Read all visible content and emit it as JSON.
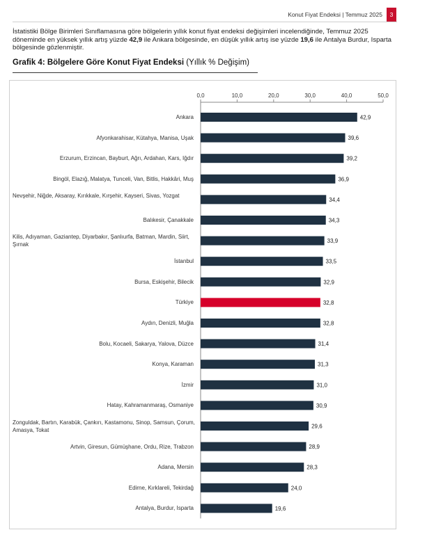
{
  "header": {
    "text": "Konut Fiyat Endeksi | Temmuz 2025",
    "page_number": "3"
  },
  "intro": {
    "part1": "İstatistiki Bölge Birimleri Sınıflamasına göre bölgelerin yıllık konut fiyat endeksi değişimleri incelendiğinde, Temmuz 2025 döneminde en yüksek yıllık artış yüzde ",
    "max_value": "42,9",
    "part2": " ile Ankara bölgesinde, en düşük yıllık artış ise yüzde ",
    "min_value": "19,6",
    "part3": " ile Antalya Burdur, Isparta bölgesinde gözlenmiştir."
  },
  "graph": {
    "title_bold": "Grafik 4: Bölgelere Göre Konut Fiyat Endeksi",
    "title_normal": " (Yıllık % Değişim)"
  },
  "chart_data": {
    "type": "bar",
    "orientation": "horizontal",
    "title": "Grafik 4: Bölgelere Göre Konut Fiyat Endeksi (Yıllık % Değişim)",
    "xlim": [
      0,
      50
    ],
    "x_ticks": [
      "0,0",
      "10,0",
      "20,0",
      "30,0",
      "40,0",
      "50,0"
    ],
    "grid": false,
    "colors": {
      "default": "#1f3142",
      "highlight": "#d6002a"
    },
    "categories": [
      "Ankara",
      "Afyonkarahisar, Kütahya, Manisa, Uşak",
      "Erzurum, Erzincan, Bayburt, Ağrı, Ardahan, Kars, Iğdır",
      "Bingöl, Elazığ, Malatya, Tunceli, Van, Bitlis, Hakkâri, Muş",
      "Nevşehir, Niğde, Aksaray, Kırıkkale, Kırşehir, Kayseri, Sivas, Yozgat",
      "Balıkesir, Çanakkale",
      "Kilis, Adıyaman, Gaziantep, Diyarbakır, Şanlıurfa, Batman, Mardin, Siirt, Şırnak",
      "İstanbul",
      "Bursa, Eskişehir, Bilecik",
      "Türkiye",
      "Aydın, Denizli, Muğla",
      "Bolu, Kocaeli, Sakarya, Yalova, Düzce",
      "Konya, Karaman",
      "İzmir",
      "Hatay, Kahramanmaraş, Osmaniye",
      "Zonguldak, Bartın, Karabük, Çankırı, Kastamonu, Sinop, Samsun, Çorum, Amasya, Tokat",
      "Artvin, Giresun, Gümüşhane, Ordu, Rize, Trabzon",
      "Adana, Mersin",
      "Edirne, Kırklareli, Tekirdağ",
      "Antalya, Burdur, Isparta"
    ],
    "values": [
      42.9,
      39.6,
      39.2,
      36.9,
      34.4,
      34.3,
      33.9,
      33.5,
      32.9,
      32.8,
      32.8,
      31.4,
      31.3,
      31.0,
      30.9,
      29.6,
      28.9,
      28.3,
      24.0,
      19.6
    ],
    "value_labels": [
      "42,9",
      "39,6",
      "39,2",
      "36,9",
      "34,4",
      "34,3",
      "33,9",
      "33,5",
      "32,9",
      "32,8",
      "32,8",
      "31,4",
      "31,3",
      "31,0",
      "30,9",
      "29,6",
      "28,9",
      "28,3",
      "24,0",
      "19,6"
    ],
    "highlight_category": "Türkiye"
  }
}
